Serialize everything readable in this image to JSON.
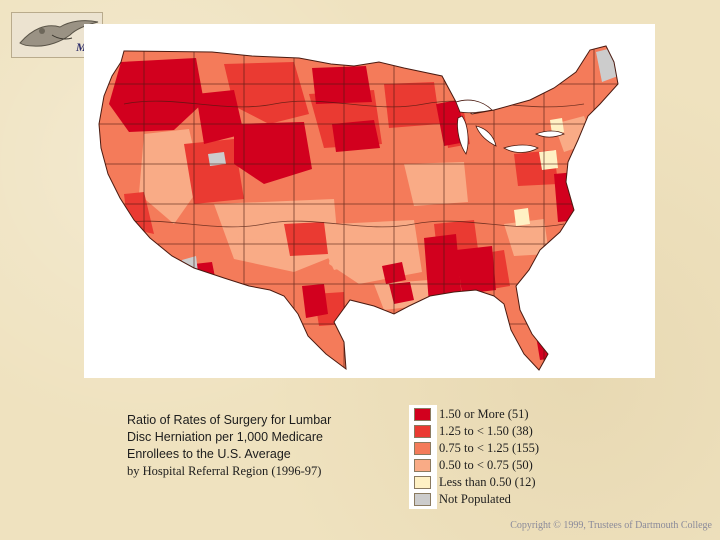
{
  "logo": {
    "letter": "M"
  },
  "map": {
    "colors": {
      "high": "#d2001e",
      "mid_high": "#ea3a32",
      "average": "#f47b5a",
      "low": "#f9ab86",
      "very_low": "#fff1c4",
      "none": "#cccccc",
      "border": "#4a1a10"
    }
  },
  "caption": {
    "line1": "Ratio of Rates of Surgery for Lumbar",
    "line2": "Disc Herniation per 1,000 Medicare",
    "line3": "Enrollees to the U.S. Average",
    "line4": "by Hospital Referral Region (1996-97)"
  },
  "legend": {
    "items": [
      {
        "label": "1.50 or More (51)",
        "color": "#d2001e"
      },
      {
        "label": "1.25 to < 1.50 (38)",
        "color": "#ea3a32"
      },
      {
        "label": "0.75 to < 1.25 (155)",
        "color": "#f47b5a"
      },
      {
        "label": "0.50 to < 0.75 (50)",
        "color": "#f9ab86"
      },
      {
        "label": "Less than 0.50 (12)",
        "color": "#fff1c4"
      },
      {
        "label": "Not Populated",
        "color": "#cccccc"
      }
    ]
  },
  "copyright": "Copyright © 1999, Trustees of Dartmouth College"
}
